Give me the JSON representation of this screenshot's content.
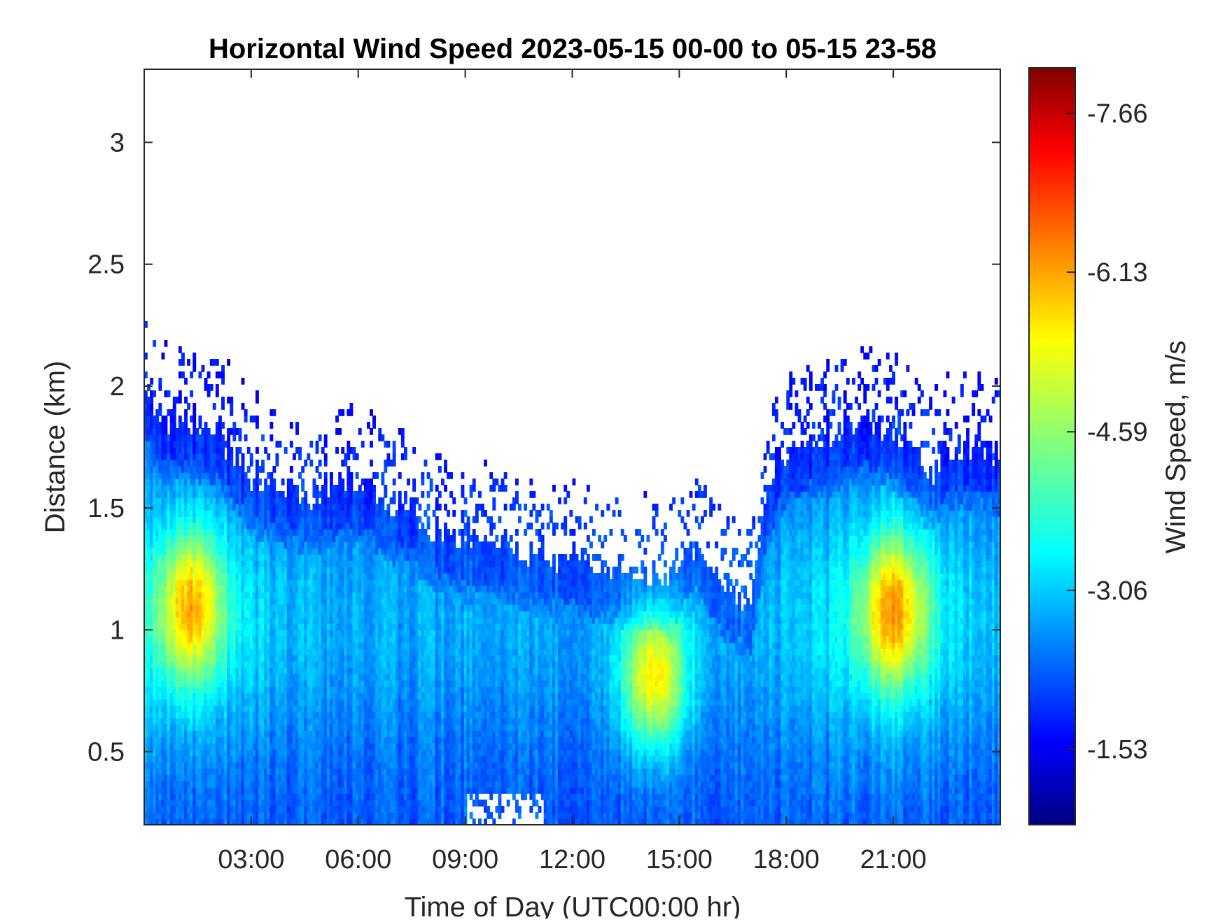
{
  "chart_data": {
    "type": "heatmap",
    "title": "Horizontal Wind Speed 2023-05-15 00-00 to 05-15 23-58",
    "xlabel": "Time of Day (UTC00:00 hr)",
    "ylabel": "Distance (km)",
    "xlim": [
      0,
      24
    ],
    "ylim": [
      0.2,
      3.3
    ],
    "x_ticks": [
      3,
      6,
      9,
      12,
      15,
      18,
      21
    ],
    "x_tick_labels": [
      "03:00",
      "06:00",
      "09:00",
      "12:00",
      "15:00",
      "18:00",
      "21:00"
    ],
    "y_ticks": [
      0.5,
      1,
      1.5,
      2,
      2.5,
      3
    ],
    "y_tick_labels": [
      "0.5",
      "1",
      "1.5",
      "2",
      "2.5",
      "3"
    ],
    "grid": false,
    "colormap": "jet",
    "colorbar": {
      "label": "Wind Speed, m/s",
      "range": [
        -0.8,
        -8.1
      ],
      "ticks": [
        -7.66,
        -6.13,
        -4.59,
        -3.06,
        -1.53
      ],
      "tick_labels": [
        "-7.66",
        "-6.13",
        "-4.59",
        "-3.06",
        "-1.53"
      ]
    },
    "data_top_km": [
      [
        0.0,
        2.05
      ],
      [
        0.5,
        1.85
      ],
      [
        1.0,
        1.87
      ],
      [
        2.0,
        1.82
      ],
      [
        3.0,
        1.62
      ],
      [
        4.5,
        1.55
      ],
      [
        6.0,
        1.6
      ],
      [
        7.5,
        1.48
      ],
      [
        8.5,
        1.38
      ],
      [
        9.5,
        1.35
      ],
      [
        11.0,
        1.3
      ],
      [
        12.5,
        1.25
      ],
      [
        14.5,
        1.2
      ],
      [
        15.5,
        1.35
      ],
      [
        16.0,
        1.2
      ],
      [
        17.0,
        1.1
      ],
      [
        17.5,
        1.6
      ],
      [
        18.0,
        1.75
      ],
      [
        19.0,
        1.8
      ],
      [
        20.0,
        1.85
      ],
      [
        21.0,
        1.83
      ],
      [
        22.0,
        1.65
      ],
      [
        23.0,
        1.75
      ],
      [
        24.0,
        1.72
      ]
    ],
    "high_wind_cores": [
      {
        "time": 1.3,
        "distance_km": 1.1,
        "speed": -5.6
      },
      {
        "time": 14.3,
        "distance_km": 0.8,
        "speed": -5.9
      },
      {
        "time": 21.0,
        "distance_km": 1.08,
        "speed": -5.7
      }
    ]
  }
}
